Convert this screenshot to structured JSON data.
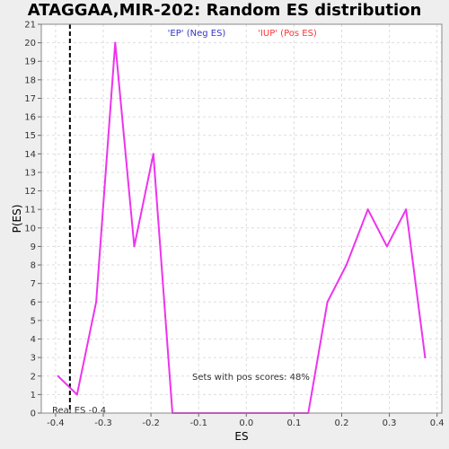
{
  "chart_data": {
    "type": "line",
    "title": "ATAGGAA,MIR-202: Random ES distribution",
    "xlabel": "ES",
    "ylabel": "P(ES)",
    "xlim": [
      -0.43,
      0.41
    ],
    "ylim": [
      0,
      21
    ],
    "x_ticks": [
      -0.4,
      -0.3,
      -0.2,
      -0.1,
      0.0,
      0.1,
      0.2,
      0.3,
      0.4
    ],
    "x_tick_labels": [
      "-0.4",
      "-0.3",
      "-0.2",
      "-0.1",
      "0.0",
      "0.1",
      "0.2",
      "0.3",
      "0.4"
    ],
    "y_ticks": [
      0,
      1,
      2,
      3,
      4,
      5,
      6,
      7,
      8,
      9,
      10,
      11,
      12,
      13,
      14,
      15,
      16,
      17,
      18,
      19,
      20,
      21
    ],
    "grid": true,
    "legend_position": "top-center",
    "legend": [
      {
        "label": "'EP' (Neg ES)",
        "color": "#3333cc"
      },
      {
        "label": "'IUP' (Pos ES)",
        "color": "#ff3333"
      }
    ],
    "series": [
      {
        "color": "#ee33ee",
        "x": [
          -0.395,
          -0.355,
          -0.315,
          -0.275,
          -0.235,
          -0.195,
          -0.155,
          -0.115,
          -0.075,
          -0.035,
          0.005,
          0.045,
          0.085,
          0.13,
          0.17,
          0.21,
          0.255,
          0.295,
          0.335,
          0.375
        ],
        "y": [
          2,
          1,
          6,
          20,
          9,
          14,
          0,
          0,
          0,
          0,
          0,
          0,
          0,
          0,
          6,
          8,
          11,
          9,
          11,
          3
        ]
      }
    ],
    "reference_line": {
      "x": -0.37,
      "label": "Real ES -0.4",
      "color": "#000000"
    },
    "annotation": "Sets with pos scores: 48%"
  },
  "colors": {
    "plot_bg": "#ffffff",
    "page_bg": "#eeeeee",
    "grid": "#dddddd",
    "series": "#ee33ee"
  }
}
